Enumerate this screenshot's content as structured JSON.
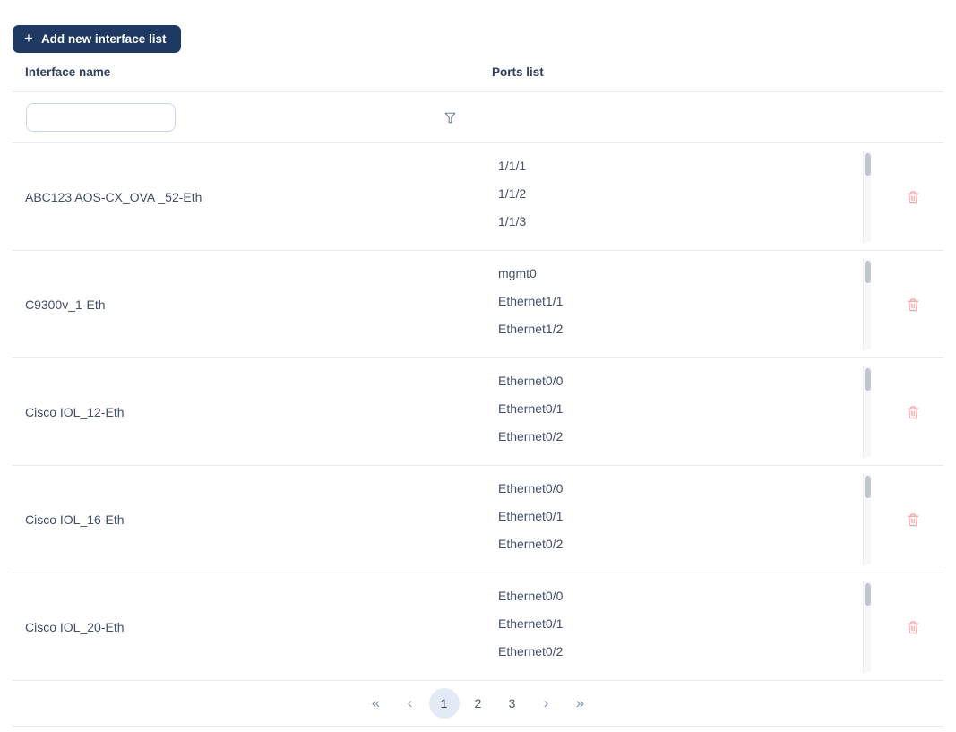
{
  "toolbar": {
    "add_button_label": "Add new interface list",
    "plus_icon": "+"
  },
  "table": {
    "columns": [
      {
        "label": "Interface name"
      },
      {
        "label": "Ports list"
      }
    ],
    "filter": {
      "name_filter_value": "",
      "filter_menu_icon": "funnel-icon"
    },
    "rows": [
      {
        "name": "ABC123 AOS-CX_OVA _52-Eth",
        "ports": [
          "1/1/1",
          "1/1/2",
          "1/1/3"
        ]
      },
      {
        "name": "C9300v_1-Eth",
        "ports": [
          "mgmt0",
          "Ethernet1/1",
          "Ethernet1/2"
        ]
      },
      {
        "name": "Cisco IOL_12-Eth",
        "ports": [
          "Ethernet0/0",
          "Ethernet0/1",
          "Ethernet0/2"
        ]
      },
      {
        "name": "Cisco IOL_16-Eth",
        "ports": [
          "Ethernet0/0",
          "Ethernet0/1",
          "Ethernet0/2"
        ]
      },
      {
        "name": "Cisco IOL_20-Eth",
        "ports": [
          "Ethernet0/0",
          "Ethernet0/1",
          "Ethernet0/2"
        ]
      }
    ],
    "row_action_icon": "trash-icon"
  },
  "pagination": {
    "first_label": "«",
    "prev_label": "‹",
    "pages": [
      "1",
      "2",
      "3"
    ],
    "active_page": "1",
    "next_label": "›",
    "last_label": "»"
  },
  "colors": {
    "primary": "#1e3a63",
    "danger": "#f59e9e",
    "divider": "#e4e9f2",
    "pager-active-bg": "#e3eaf5"
  }
}
